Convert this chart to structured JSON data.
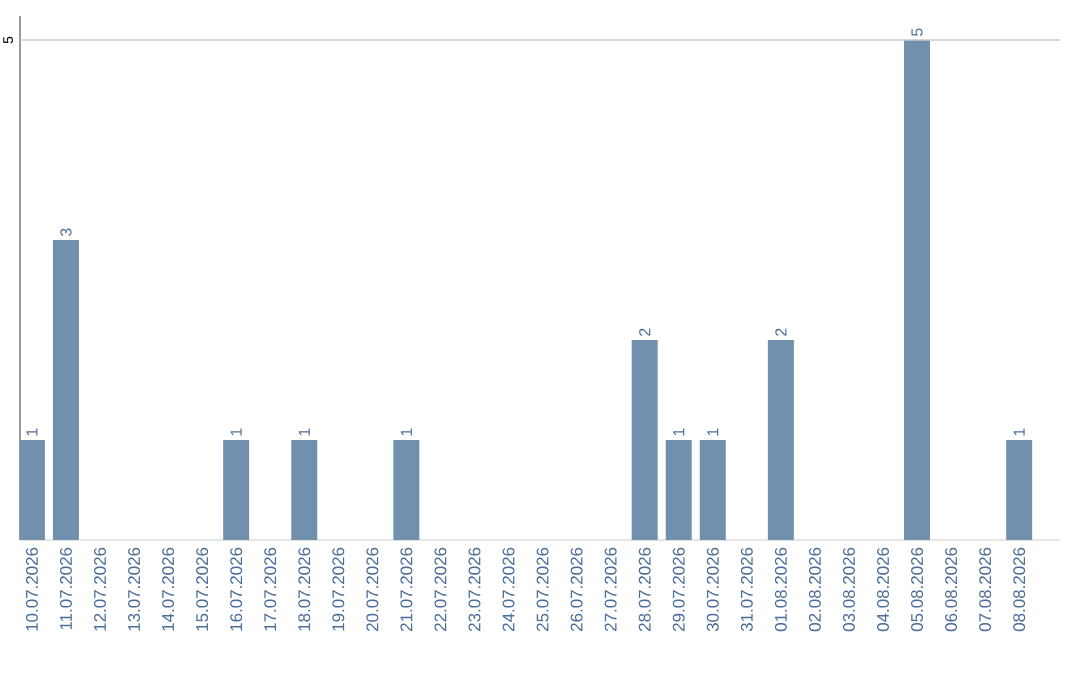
{
  "chart_data": {
    "type": "bar",
    "categories": [
      "10.07.2026",
      "11.07.2026",
      "12.07.2026",
      "13.07.2026",
      "14.07.2026",
      "15.07.2026",
      "16.07.2026",
      "17.07.2026",
      "18.07.2026",
      "19.07.2026",
      "20.07.2026",
      "21.07.2026",
      "22.07.2026",
      "23.07.2026",
      "24.07.2026",
      "25.07.2026",
      "26.07.2026",
      "27.07.2026",
      "28.07.2026",
      "29.07.2026",
      "30.07.2026",
      "31.07.2026",
      "01.08.2026",
      "02.08.2026",
      "03.08.2026",
      "04.08.2026",
      "05.08.2026",
      "06.08.2026",
      "07.08.2026",
      "08.08.2026"
    ],
    "values": [
      1,
      3,
      null,
      null,
      null,
      null,
      1,
      null,
      1,
      null,
      null,
      1,
      null,
      null,
      null,
      null,
      null,
      null,
      2,
      1,
      1,
      null,
      2,
      null,
      null,
      null,
      5,
      null,
      null,
      1
    ],
    "color": "#7090ae",
    "ylim": [
      0,
      5
    ],
    "yticks": [
      5
    ],
    "ref_lines": [
      {
        "axis": "y",
        "value": 5,
        "color": "#c8c8c8"
      }
    ],
    "data_labels": true
  }
}
